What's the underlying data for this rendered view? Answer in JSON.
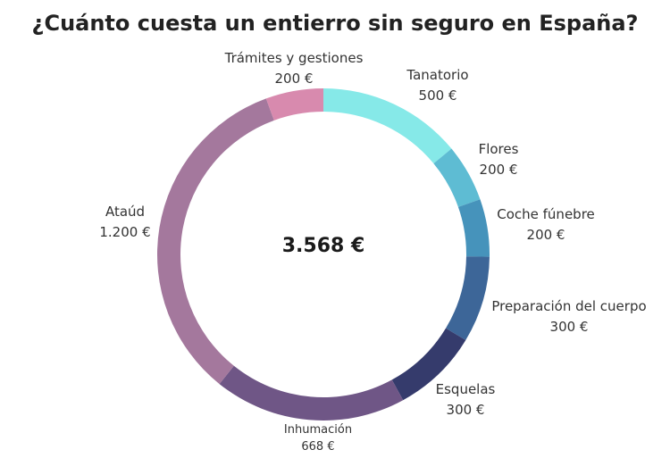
{
  "chart_data": {
    "type": "pie",
    "style": "donut",
    "title": "¿Cuánto cuesta un entierro sin seguro en España?",
    "center_label": "3.568 €",
    "start_angle": "top, clockwise",
    "slices": [
      {
        "label": "Tanatorio",
        "value": 500,
        "value_label": "500 €",
        "color": "#86E9E8"
      },
      {
        "label": "Flores",
        "value": 200,
        "value_label": "200 €",
        "color": "#5EBCD3"
      },
      {
        "label": "Coche fúnebre",
        "value": 200,
        "value_label": "200 €",
        "color": "#4693BB"
      },
      {
        "label": "Preparación del cuerpo",
        "value": 300,
        "value_label": "300 €",
        "color": "#3D6698"
      },
      {
        "label": "Esquelas",
        "value": 300,
        "value_label": "300 €",
        "color": "#353B6C"
      },
      {
        "label": "Inhumación",
        "value": 668,
        "value_label": "668 €",
        "color": "#6F5686"
      },
      {
        "label": "Ataúd",
        "value": 1200,
        "value_label": "1.200 €",
        "color": "#A4789D"
      },
      {
        "label": "Trámites y gestiones",
        "value": 200,
        "value_label": "200 €",
        "color": "#D88AAE"
      }
    ]
  }
}
